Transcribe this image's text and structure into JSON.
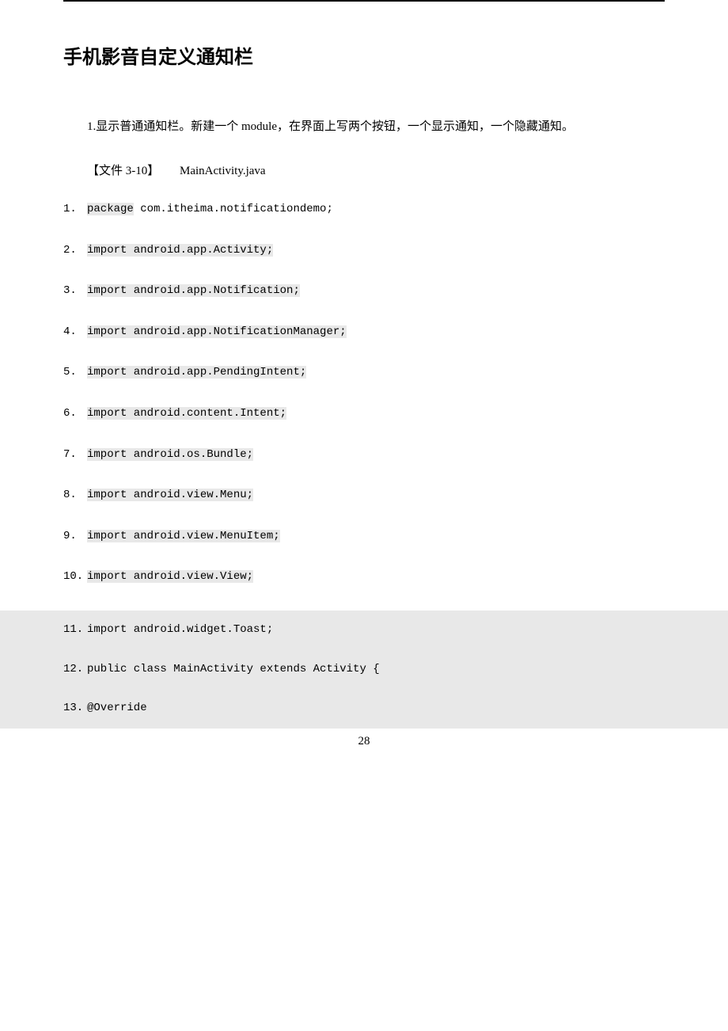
{
  "title_bold": "手机影音",
  "title_rest": "自定义通知栏",
  "paragraph": "1.显示普通通知栏。新建一个 module，在界面上写两个按钮，一个显示通知，一个隐藏通知。",
  "file_ref": "【文件 3-10】",
  "file_name": "MainActivity.java",
  "code_lines": [
    {
      "num": "1.",
      "keyword": "package",
      "rest": " com.itheima.notificationdemo;",
      "highlighted": true,
      "shaded": false
    },
    {
      "num": "2.",
      "keyword": "",
      "rest": "import android.app.Activity;",
      "highlighted": true,
      "shaded": false
    },
    {
      "num": "3.",
      "keyword": "",
      "rest": "import android.app.Notification;",
      "highlighted": true,
      "shaded": false
    },
    {
      "num": "4.",
      "keyword": "",
      "rest": "import android.app.NotificationManager;",
      "highlighted": true,
      "shaded": false
    },
    {
      "num": "5.",
      "keyword": "",
      "rest": "import android.app.PendingIntent;",
      "highlighted": true,
      "shaded": false
    },
    {
      "num": "6.",
      "keyword": "",
      "rest": "import android.content.Intent;",
      "highlighted": true,
      "shaded": false
    },
    {
      "num": "7.",
      "keyword": "",
      "rest": "import android.os.Bundle;",
      "highlighted": true,
      "shaded": false
    },
    {
      "num": "8.",
      "keyword": "",
      "rest": "import android.view.Menu;",
      "highlighted": true,
      "shaded": false
    },
    {
      "num": "9.",
      "keyword": "",
      "rest": "import android.view.MenuItem;",
      "highlighted": true,
      "shaded": false
    },
    {
      "num": "10.",
      "keyword": "",
      "rest": "import android.view.View;",
      "highlighted": true,
      "shaded": false
    },
    {
      "num": "11.",
      "keyword": "",
      "rest": "import android.widget.Toast;",
      "highlighted": false,
      "shaded": true
    },
    {
      "num": "12.",
      "keyword": "",
      "rest": "public class MainActivity extends Activity {",
      "highlighted": false,
      "shaded": true
    },
    {
      "num": "13.",
      "keyword": "",
      "rest": "   @Override",
      "highlighted": false,
      "shaded": true
    }
  ],
  "page_number": "28",
  "colors": {
    "background": "#ffffff",
    "text": "#000000",
    "highlight": "#e8e8e8",
    "border": "#000000"
  },
  "typography": {
    "title_font": "Microsoft YaHei",
    "body_font": "SimSun",
    "code_font": "Courier New",
    "title_size": 24,
    "body_size": 15,
    "code_size": 14
  }
}
